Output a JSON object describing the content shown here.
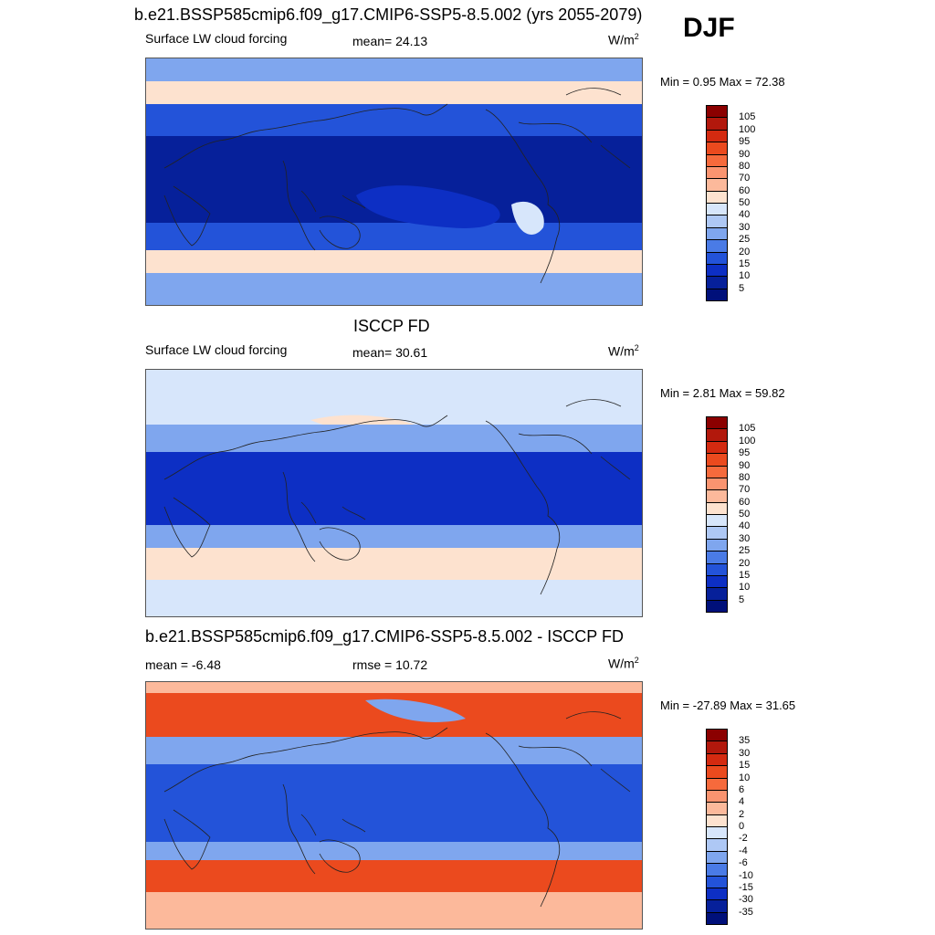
{
  "season": "DJF",
  "panels": [
    {
      "id": "model",
      "title": "b.e21.BSSP585cmip6.f09_g17.CMIP6-SSP5-8.5.002 (yrs 2055-2079)",
      "left_label": "Surface LW cloud forcing",
      "center_label": "mean=  24.13",
      "units": "W/m",
      "units_sup": "2",
      "minmax": "Min =   0.95 Max =  72.38",
      "colorbar": {
        "labels": [
          "105",
          "100",
          "95",
          "90",
          "80",
          "70",
          "60",
          "50",
          "40",
          "30",
          "25",
          "20",
          "15",
          "10",
          "5"
        ],
        "colors": [
          "#8b0000",
          "#b2180c",
          "#d42a10",
          "#eb4a1e",
          "#f66a3c",
          "#fa9470",
          "#fcb99b",
          "#fde2cf",
          "#d7e6fb",
          "#aec8f5",
          "#7fa6ee",
          "#4a7be6",
          "#2353d9",
          "#0d2fc4",
          "#06209a",
          "#00107a"
        ]
      }
    },
    {
      "id": "obs",
      "title": "ISCCP FD",
      "left_label": "Surface LW cloud forcing",
      "center_label": "mean=  30.61",
      "units": "W/m",
      "units_sup": "2",
      "minmax": "Min =   2.81 Max =  59.82",
      "colorbar": {
        "labels": [
          "105",
          "100",
          "95",
          "90",
          "80",
          "70",
          "60",
          "50",
          "40",
          "30",
          "25",
          "20",
          "15",
          "10",
          "5"
        ],
        "colors": [
          "#8b0000",
          "#b2180c",
          "#d42a10",
          "#eb4a1e",
          "#f66a3c",
          "#fa9470",
          "#fcb99b",
          "#fde2cf",
          "#d7e6fb",
          "#aec8f5",
          "#7fa6ee",
          "#4a7be6",
          "#2353d9",
          "#0d2fc4",
          "#06209a",
          "#00107a"
        ]
      }
    },
    {
      "id": "diff",
      "title": "b.e21.BSSP585cmip6.f09_g17.CMIP6-SSP5-8.5.002 - ISCCP FD",
      "left_label": "mean =  -6.48",
      "center_label": "rmse =  10.72",
      "units": "W/m",
      "units_sup": "2",
      "minmax": "Min = -27.89 Max =  31.65",
      "colorbar": {
        "labels": [
          "35",
          "30",
          "15",
          "10",
          "6",
          "4",
          "2",
          "0",
          "-2",
          "-4",
          "-6",
          "-10",
          "-15",
          "-30",
          "-35"
        ],
        "colors": [
          "#8b0000",
          "#b2180c",
          "#d42a10",
          "#eb4a1e",
          "#f66a3c",
          "#fa9470",
          "#fcb99b",
          "#fde2cf",
          "#d7e6fb",
          "#aec8f5",
          "#7fa6ee",
          "#4a7be6",
          "#2353d9",
          "#0d2fc4",
          "#06209a",
          "#00107a"
        ]
      }
    }
  ],
  "map_colors": {
    "deep": "#06209a",
    "strong": "#0d2fc4",
    "mid": "#2353d9",
    "light": "#7fa6ee",
    "pale": "#d7e6fb",
    "warm": "#fde2cf",
    "warm2": "#fcb99b",
    "hot": "#eb4a1e",
    "coast": "#222222"
  }
}
